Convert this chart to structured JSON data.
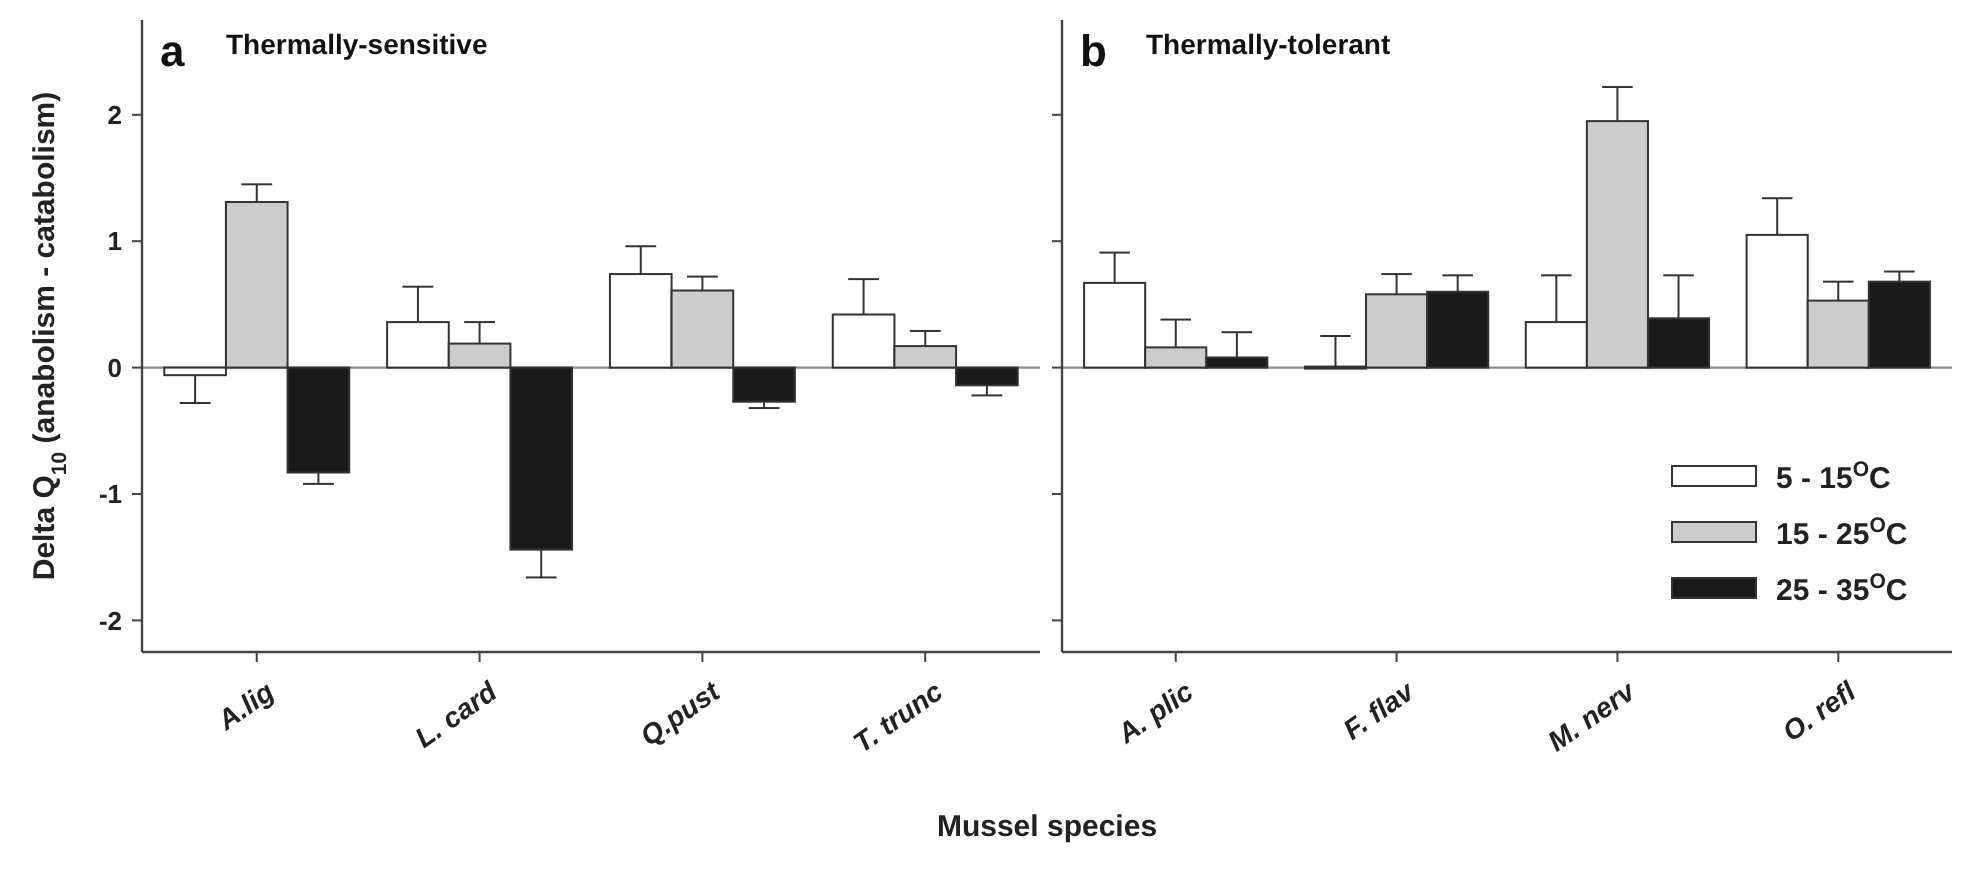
{
  "chart_data": [
    {
      "type": "bar",
      "title": "Thermally-sensitive",
      "annotations": [
        "a"
      ],
      "ylabel": "Delta Q$_{10}$ (anabolism - catabolism)",
      "xlabel": "Mussel species",
      "categories": [
        "A.lig",
        "L. card",
        "Q.pust",
        "T. trunc"
      ],
      "ylim": [
        -2.25,
        2.75
      ],
      "yticks": [
        -2,
        -1,
        0,
        1,
        2
      ],
      "legend": false,
      "ref_lines": [
        {
          "axis": "y",
          "value": 0,
          "color": "#8c8c8c"
        }
      ],
      "series": [
        {
          "color": "#ffffff",
          "values": [
            -0.06,
            0.36,
            0.74,
            0.42
          ],
          "errors": [
            [
              -0.28,
              -0.06
            ],
            [
              0.36,
              0.64
            ],
            [
              0.74,
              0.96
            ],
            [
              0.42,
              0.7
            ]
          ]
        },
        {
          "color": "#cccccc",
          "values": [
            1.31,
            0.19,
            0.61,
            0.17
          ],
          "errors": [
            [
              1.31,
              1.45
            ],
            [
              0.19,
              0.36
            ],
            [
              0.61,
              0.72
            ],
            [
              0.17,
              0.29
            ]
          ]
        },
        {
          "color": "#1a1a1a",
          "values": [
            -0.83,
            -1.44,
            -0.27,
            -0.14
          ],
          "errors": [
            [
              -0.92,
              -0.83
            ],
            [
              -1.66,
              -1.44
            ],
            [
              -0.32,
              -0.27
            ],
            [
              -0.22,
              -0.14
            ]
          ]
        }
      ]
    },
    {
      "type": "bar",
      "title": "Thermally-tolerant",
      "annotations": [
        "b"
      ],
      "categories": [
        "A. plic",
        "F. flav",
        "M. nerv",
        "O. refl"
      ],
      "ylim": [
        -2.25,
        2.75
      ],
      "yticks": [
        -2,
        -1,
        0,
        1,
        2
      ],
      "tick_labels": "x",
      "legend": "bottom right",
      "ref_lines": [
        {
          "axis": "y",
          "value": 0,
          "color": "#8c8c8c"
        }
      ],
      "series": [
        {
          "name": "5 - 15$^{O}$C",
          "color": "#ffffff",
          "values": [
            0.67,
            0,
            0.36,
            1.05
          ],
          "errors": [
            [
              0.67,
              0.91
            ],
            [
              0,
              0.25
            ],
            [
              0.36,
              0.73
            ],
            [
              1.05,
              1.34
            ]
          ]
        },
        {
          "name": "15 - 25$^{O}$C",
          "color": "#cccccc",
          "values": [
            0.16,
            0.58,
            1.95,
            0.53
          ],
          "errors": [
            [
              0.16,
              0.38
            ],
            [
              0.58,
              0.74
            ],
            [
              1.95,
              2.22
            ],
            [
              0.53,
              0.68
            ]
          ]
        },
        {
          "name": "25 - 35$^{O}$C",
          "color": "#1a1a1a",
          "values": [
            0.08,
            0.6,
            0.39,
            0.68
          ],
          "errors": [
            [
              0.08,
              0.28
            ],
            [
              0.6,
              0.73
            ],
            [
              0.39,
              0.73
            ],
            [
              0.68,
              0.76
            ]
          ]
        }
      ]
    }
  ]
}
